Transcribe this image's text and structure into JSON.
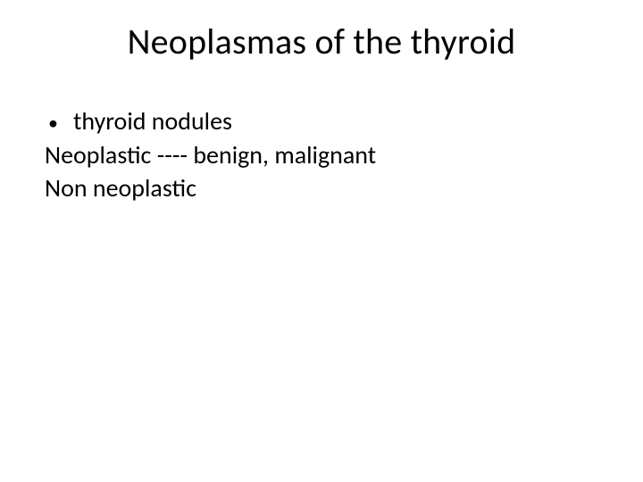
{
  "slide": {
    "title": "Neoplasmas of the thyroid",
    "bullet1": "thyroid nodules",
    "line2": "Neoplastic  ---- benign, malignant",
    "line3": "Non neoplastic"
  },
  "style": {
    "background_color": "#ffffff",
    "text_color": "#000000",
    "title_fontsize": 40,
    "body_fontsize": 28,
    "font_family": "Calibri",
    "bullet_char": "•"
  }
}
